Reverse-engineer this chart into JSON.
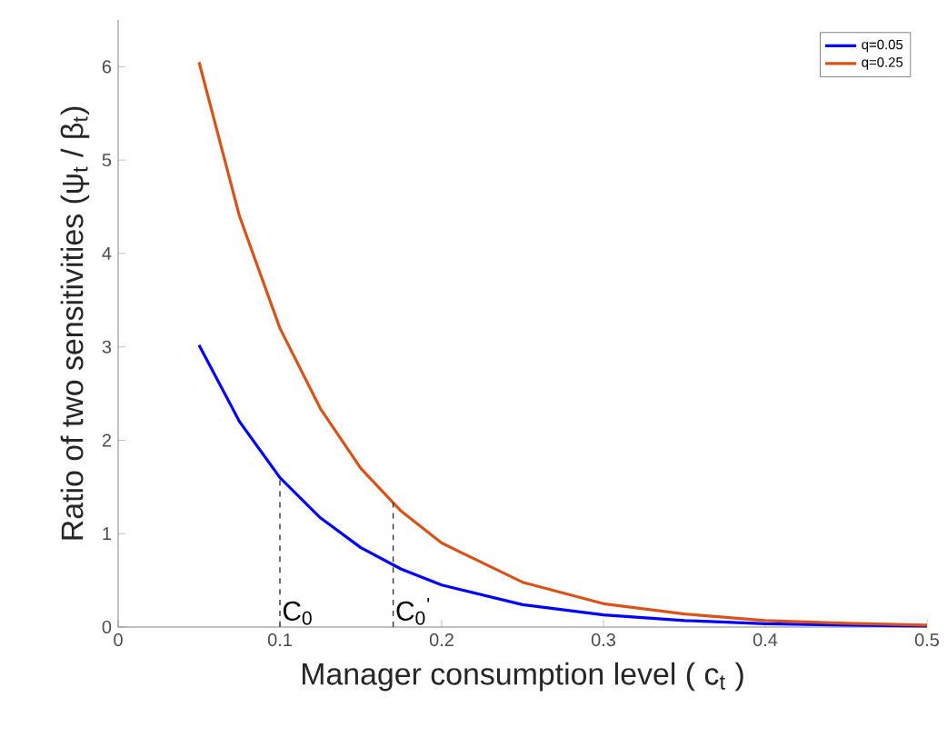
{
  "chart_data": {
    "type": "line",
    "xlabel": "Manager consumption level ( c$_{t}$ )",
    "ylabel": "Ratio of two sensitivities (ψ$_{t}$ / β$_{t}$)",
    "x": [
      0.05,
      0.075,
      0.1,
      0.125,
      0.15,
      0.175,
      0.2,
      0.25,
      0.3,
      0.35,
      0.4,
      0.45,
      0.5
    ],
    "series": [
      {
        "name": "q=0.05",
        "color": "#0000ff",
        "values": [
          3.02,
          2.2,
          1.6,
          1.17,
          0.85,
          0.62,
          0.45,
          0.24,
          0.13,
          0.07,
          0.035,
          0.02,
          0.01
        ]
      },
      {
        "name": "q=0.25",
        "color": "#d95319",
        "values": [
          6.05,
          4.4,
          3.2,
          2.34,
          1.7,
          1.24,
          0.9,
          0.48,
          0.25,
          0.14,
          0.07,
          0.04,
          0.02
        ]
      }
    ],
    "xlim": [
      0,
      0.5
    ],
    "xticks": [
      0,
      0.1,
      0.2,
      0.3,
      0.4,
      0.5
    ],
    "ylim": [
      0,
      6.5
    ],
    "yticks": [
      0,
      1,
      2,
      3,
      4,
      5,
      6
    ],
    "ref_lines": [
      {
        "axis": "x",
        "value": 0.1,
        "label": "C$_{0}$",
        "color": "#333333",
        "line_style": "dashed"
      },
      {
        "axis": "x",
        "value": 0.17,
        "label": "C$_{0}$$^{'}$",
        "color": "#333333",
        "line_style": "dashed"
      }
    ],
    "legend": "top right",
    "marker": "none",
    "line_style": "solid",
    "grid": false
  }
}
